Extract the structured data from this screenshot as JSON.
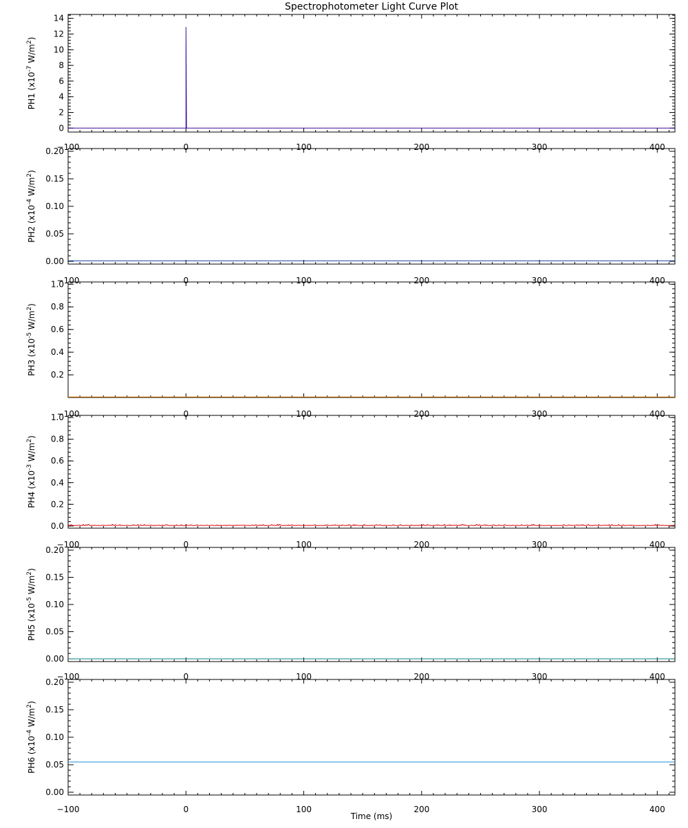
{
  "title": "Spectrophotometer Light Curve Plot",
  "xlabel": "Time (ms)",
  "chart_data": [
    {
      "type": "line",
      "name": "PH1",
      "ylabel_prefix": "PH1",
      "ylabel_unit": "(x10",
      "ylabel_exp": "-7",
      "ylabel_tail": " W/m",
      "xlim": [
        -100,
        415
      ],
      "ylim": [
        -0.5,
        14.5
      ],
      "xticks": [
        -100,
        0,
        100,
        200,
        300,
        400
      ],
      "yticks": [
        0,
        2,
        4,
        6,
        8,
        10,
        12,
        14
      ],
      "ytick_labels": [
        "0",
        "2",
        "4",
        "6",
        "8",
        "10",
        "12",
        "14"
      ],
      "color": "#3b0aa0",
      "series": {
        "x": [
          -100,
          -1,
          0,
          0,
          0.5,
          415
        ],
        "y": [
          0,
          0,
          0,
          12.9,
          0,
          0
        ]
      }
    },
    {
      "type": "line",
      "name": "PH2",
      "ylabel_prefix": "PH2",
      "ylabel_unit": "(x10",
      "ylabel_exp": "-4",
      "ylabel_tail": " W/m",
      "xlim": [
        -100,
        415
      ],
      "ylim": [
        -0.005,
        0.205
      ],
      "xticks": [
        -100,
        0,
        100,
        200,
        300,
        400
      ],
      "yticks": [
        0.0,
        0.05,
        0.1,
        0.15,
        0.2
      ],
      "ytick_labels": [
        "0.00",
        "0.05",
        "0.10",
        "0.15",
        "0.20"
      ],
      "color": "#0a3fa0",
      "series": {
        "x": [
          -100,
          415
        ],
        "y": [
          0.001,
          0.001
        ]
      }
    },
    {
      "type": "line",
      "name": "PH3",
      "ylabel_prefix": "PH3",
      "ylabel_unit": "(x10",
      "ylabel_exp": "-5",
      "ylabel_tail": " W/m",
      "xlim": [
        -100,
        415
      ],
      "ylim": [
        0.0,
        1.02
      ],
      "xticks": [
        -100,
        0,
        100,
        200,
        300,
        400
      ],
      "yticks": [
        0.2,
        0.4,
        0.6,
        0.8,
        1.0
      ],
      "ytick_labels": [
        "0.2",
        "0.4",
        "0.6",
        "0.8",
        "1.0"
      ],
      "color": "#e07b00",
      "series": {
        "x": [
          -100,
          415
        ],
        "y": [
          0.005,
          0.005
        ]
      }
    },
    {
      "type": "line",
      "name": "PH4",
      "ylabel_prefix": "PH4",
      "ylabel_unit": "(x10",
      "ylabel_exp": "-3",
      "ylabel_tail": " W/m",
      "xlim": [
        -100,
        415
      ],
      "ylim": [
        -0.02,
        1.02
      ],
      "xticks": [
        -100,
        0,
        100,
        200,
        300,
        400
      ],
      "yticks": [
        0.0,
        0.2,
        0.4,
        0.6,
        0.8,
        1.0
      ],
      "ytick_labels": [
        "0.0",
        "0.2",
        "0.4",
        "0.6",
        "0.8",
        "1.0"
      ],
      "color": "#e00000",
      "noise": {
        "base": 0.003,
        "amp": 0.012,
        "seed": 7
      },
      "series": {
        "x": [
          -100,
          415
        ],
        "y": [
          0.003,
          0.003
        ]
      }
    },
    {
      "type": "line",
      "name": "PH5",
      "ylabel_prefix": "PH5",
      "ylabel_unit": "(x10",
      "ylabel_exp": "-5",
      "ylabel_tail": " W/m",
      "xlim": [
        -100,
        415
      ],
      "ylim": [
        -0.005,
        0.205
      ],
      "xticks": [
        -100,
        0,
        100,
        200,
        300,
        400
      ],
      "yticks": [
        0.0,
        0.05,
        0.1,
        0.15,
        0.2
      ],
      "ytick_labels": [
        "0.00",
        "0.05",
        "0.10",
        "0.15",
        "0.20"
      ],
      "color": "#0a7f7f",
      "series": {
        "x": [
          -100,
          415
        ],
        "y": [
          0.0,
          0.0
        ]
      }
    },
    {
      "type": "line",
      "name": "PH6",
      "ylabel_prefix": "PH6",
      "ylabel_unit": "(x10",
      "ylabel_exp": "-4",
      "ylabel_tail": " W/m",
      "xlim": [
        -100,
        415
      ],
      "ylim": [
        -0.005,
        0.205
      ],
      "xticks": [
        -100,
        0,
        100,
        200,
        300,
        400
      ],
      "yticks": [
        0.0,
        0.05,
        0.1,
        0.15,
        0.2
      ],
      "ytick_labels": [
        "0.00",
        "0.05",
        "0.10",
        "0.15",
        "0.20"
      ],
      "color": "#1e8fd0",
      "series": {
        "x": [
          -100,
          415
        ],
        "y": [
          0.055,
          0.055
        ]
      }
    }
  ],
  "xtick_labels": [
    "−100",
    "0",
    "100",
    "200",
    "300",
    "400"
  ]
}
